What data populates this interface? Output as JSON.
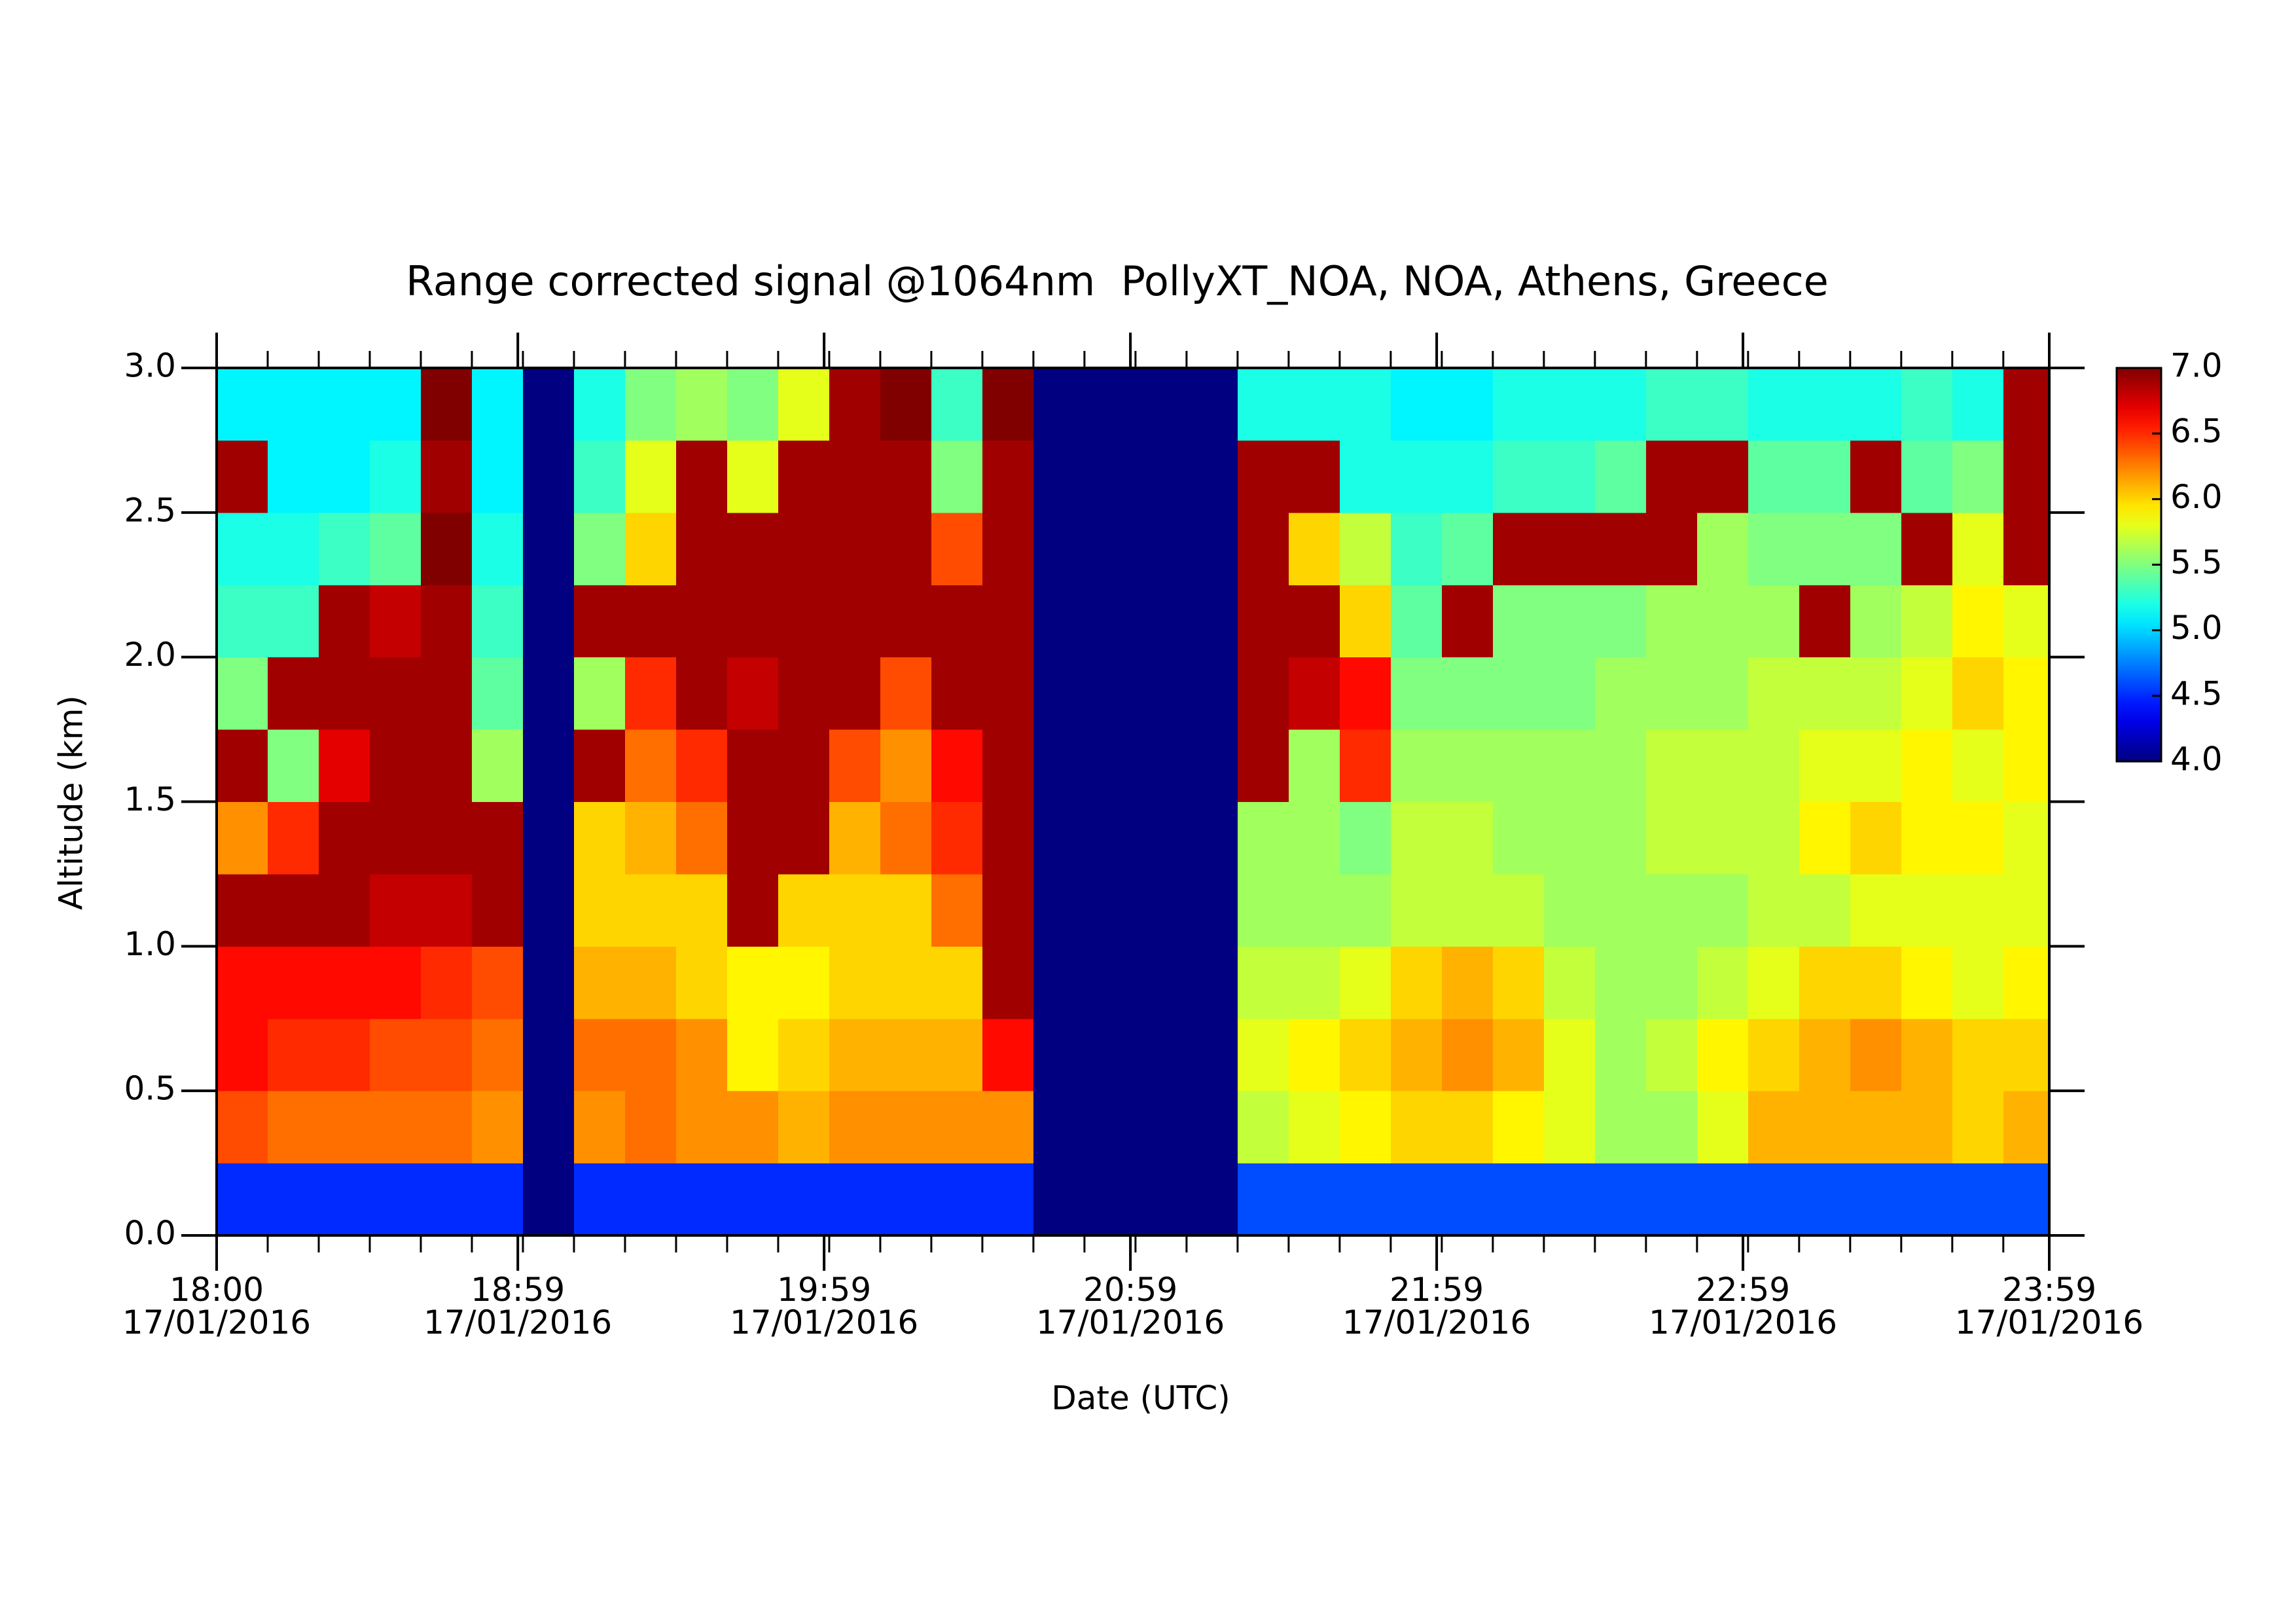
{
  "chart_data": {
    "type": "heatmap",
    "title": "Range corrected signal @1064nm  PollyXT_NOA, NOA, Athens, Greece",
    "x_label": "Date (UTC)",
    "y_label": "Altitude (km)",
    "colormap": "jet",
    "x": [
      "18:00",
      "18:10",
      "18:20",
      "18:30",
      "18:40",
      "18:50",
      "19:00",
      "19:10",
      "19:20",
      "19:30",
      "19:40",
      "19:50",
      "20:00",
      "20:10",
      "20:20",
      "20:30",
      "20:40",
      "20:50",
      "21:00",
      "21:10",
      "21:20",
      "21:30",
      "21:40",
      "21:50",
      "22:00",
      "22:10",
      "22:20",
      "22:30",
      "22:40",
      "22:50",
      "23:00",
      "23:10",
      "23:20",
      "23:30",
      "23:40",
      "23:50"
    ],
    "y": [
      0,
      0.25,
      0.5,
      0.75,
      1,
      1.25,
      1.5,
      1.75,
      2,
      2.25,
      2.5,
      2.75
    ],
    "z": [
      [
        4.5,
        6.4,
        6.6,
        6.6,
        6.9,
        6.2,
        6.9,
        5.5,
        5.3,
        5.2,
        6.9,
        5.1
      ],
      [
        4.5,
        6.3,
        6.5,
        6.6,
        6.9,
        6.5,
        5.5,
        6.9,
        5.3,
        5.2,
        5.1,
        5.1
      ],
      [
        4.5,
        6.3,
        6.5,
        6.6,
        6.9,
        6.9,
        6.7,
        6.9,
        6.9,
        5.3,
        5.1,
        5.1
      ],
      [
        4.5,
        6.3,
        6.4,
        6.6,
        6.8,
        6.9,
        6.9,
        6.9,
        6.8,
        5.4,
        5.2,
        5.1
      ],
      [
        4.5,
        6.3,
        6.4,
        6.5,
        6.8,
        6.9,
        6.9,
        6.9,
        6.9,
        7.0,
        6.9,
        7.0
      ],
      [
        4.5,
        6.2,
        6.3,
        6.4,
        6.9,
        6.9,
        5.6,
        5.4,
        5.3,
        5.2,
        5.1,
        5.1
      ],
      [
        4.0,
        4.0,
        4.0,
        4.0,
        4.0,
        4.0,
        4.0,
        4.0,
        4.0,
        4.0,
        4.0,
        4.0
      ],
      [
        4.5,
        6.2,
        6.3,
        6.1,
        6.0,
        6.0,
        6.9,
        5.6,
        6.9,
        5.5,
        5.3,
        5.2
      ],
      [
        4.5,
        6.3,
        6.3,
        6.1,
        6.0,
        6.1,
        6.3,
        6.5,
        6.9,
        6.0,
        5.8,
        5.5
      ],
      [
        4.5,
        6.2,
        6.2,
        6.0,
        6.0,
        6.3,
        6.5,
        6.9,
        6.9,
        6.9,
        6.9,
        5.6
      ],
      [
        4.5,
        6.2,
        5.9,
        5.9,
        6.9,
        6.9,
        6.9,
        6.8,
        6.9,
        6.9,
        5.8,
        5.5
      ],
      [
        4.5,
        6.1,
        6.0,
        5.9,
        6.0,
        6.9,
        6.9,
        6.9,
        6.9,
        6.9,
        6.9,
        5.8
      ],
      [
        4.5,
        6.2,
        6.1,
        6.0,
        6.0,
        6.1,
        6.4,
        6.9,
        6.9,
        6.9,
        6.9,
        6.9
      ],
      [
        4.5,
        6.2,
        6.1,
        6.0,
        6.0,
        6.3,
        6.2,
        6.4,
        6.9,
        6.9,
        6.9,
        7.0
      ],
      [
        4.5,
        6.2,
        6.1,
        6.0,
        6.3,
        6.5,
        6.6,
        6.9,
        6.9,
        6.4,
        5.5,
        5.3
      ],
      [
        4.5,
        6.2,
        6.6,
        6.9,
        6.9,
        6.9,
        6.9,
        6.9,
        6.9,
        6.9,
        6.9,
        7.0
      ],
      [
        4.0,
        4.0,
        4.0,
        4.0,
        4.0,
        4.0,
        4.0,
        4.0,
        4.0,
        4.0,
        4.0,
        4.0
      ],
      [
        4.0,
        4.0,
        4.0,
        4.0,
        4.0,
        4.0,
        4.0,
        4.0,
        4.0,
        4.0,
        4.0,
        4.0
      ],
      [
        4.0,
        4.0,
        4.0,
        4.0,
        4.0,
        4.0,
        4.0,
        4.0,
        4.0,
        4.0,
        4.0,
        4.0
      ],
      [
        4.0,
        4.0,
        4.0,
        4.0,
        4.0,
        4.0,
        4.0,
        4.0,
        4.0,
        4.0,
        4.0,
        4.0
      ],
      [
        4.6,
        5.7,
        5.8,
        5.7,
        5.6,
        5.6,
        6.9,
        6.9,
        6.9,
        6.9,
        6.9,
        5.2
      ],
      [
        4.6,
        5.8,
        5.9,
        5.7,
        5.6,
        5.6,
        5.6,
        6.8,
        6.9,
        6.0,
        6.9,
        5.2
      ],
      [
        4.6,
        5.9,
        6.0,
        5.8,
        5.6,
        5.5,
        6.5,
        6.6,
        6.0,
        5.7,
        5.2,
        5.2
      ],
      [
        4.6,
        6.0,
        6.1,
        6.0,
        5.7,
        5.7,
        5.6,
        5.5,
        5.4,
        5.3,
        5.2,
        5.1
      ],
      [
        4.6,
        6.0,
        6.2,
        6.1,
        5.7,
        5.7,
        5.6,
        5.5,
        6.9,
        5.4,
        5.2,
        5.1
      ],
      [
        4.6,
        5.9,
        6.1,
        6.0,
        5.7,
        5.6,
        5.6,
        5.5,
        5.5,
        6.9,
        5.3,
        5.2
      ],
      [
        4.6,
        5.8,
        5.8,
        5.7,
        5.6,
        5.6,
        5.6,
        5.5,
        5.5,
        6.9,
        5.3,
        5.2
      ],
      [
        4.6,
        5.6,
        5.6,
        5.6,
        5.6,
        5.6,
        5.6,
        5.6,
        5.5,
        6.9,
        5.4,
        5.2
      ],
      [
        4.6,
        5.6,
        5.7,
        5.6,
        5.6,
        5.7,
        5.7,
        5.6,
        5.6,
        6.9,
        6.9,
        5.3
      ],
      [
        4.6,
        5.8,
        5.9,
        5.7,
        5.6,
        5.7,
        5.7,
        5.6,
        5.6,
        5.6,
        6.9,
        5.3
      ],
      [
        4.6,
        6.1,
        6.0,
        5.8,
        5.7,
        5.7,
        5.7,
        5.7,
        5.6,
        5.5,
        5.4,
        5.2
      ],
      [
        4.6,
        6.1,
        6.1,
        6.0,
        5.7,
        5.9,
        5.8,
        5.7,
        6.9,
        5.5,
        5.4,
        5.2
      ],
      [
        4.6,
        6.1,
        6.2,
        6.0,
        5.8,
        6.0,
        5.8,
        5.7,
        5.6,
        5.5,
        6.9,
        5.2
      ],
      [
        4.6,
        6.1,
        6.1,
        5.9,
        5.8,
        5.9,
        5.9,
        5.8,
        5.7,
        6.9,
        5.4,
        5.3
      ],
      [
        4.6,
        6.0,
        6.0,
        5.8,
        5.8,
        5.9,
        5.8,
        6.0,
        5.9,
        5.8,
        5.5,
        5.2
      ],
      [
        4.6,
        6.1,
        6.0,
        5.9,
        5.8,
        5.8,
        5.9,
        5.9,
        5.8,
        6.9,
        6.9,
        6.9
      ]
    ],
    "xlim": [
      "18:00",
      "23:59"
    ],
    "xticks": [
      {
        "value": "18:00",
        "label": "18:00\n17/01/2016"
      },
      {
        "value": "18:59",
        "label": "18:59\n17/01/2016"
      },
      {
        "value": "19:59",
        "label": "19:59\n17/01/2016"
      },
      {
        "value": "20:59",
        "label": "20:59\n17/01/2016"
      },
      {
        "value": "21:59",
        "label": "21:59\n17/01/2016"
      },
      {
        "value": "22:59",
        "label": "22:59\n17/01/2016"
      },
      {
        "value": "23:59",
        "label": "23:59\n17/01/2016"
      }
    ],
    "ylim": [
      0,
      3
    ],
    "yticks": [
      {
        "value": 0,
        "label": "0.0"
      },
      0.5,
      {
        "value": 1,
        "label": "1.0"
      },
      1.5,
      {
        "value": 2,
        "label": "2.0"
      },
      2.5,
      {
        "value": 3,
        "label": "3.0"
      }
    ],
    "zlim": [
      4,
      7
    ],
    "zticks": [
      {
        "value": 4,
        "label": "4.0"
      },
      4.5,
      {
        "value": 5,
        "label": "5.0"
      },
      5.5,
      {
        "value": 6,
        "label": "6.0"
      },
      6.5,
      {
        "value": 7,
        "label": "7.0"
      }
    ]
  }
}
